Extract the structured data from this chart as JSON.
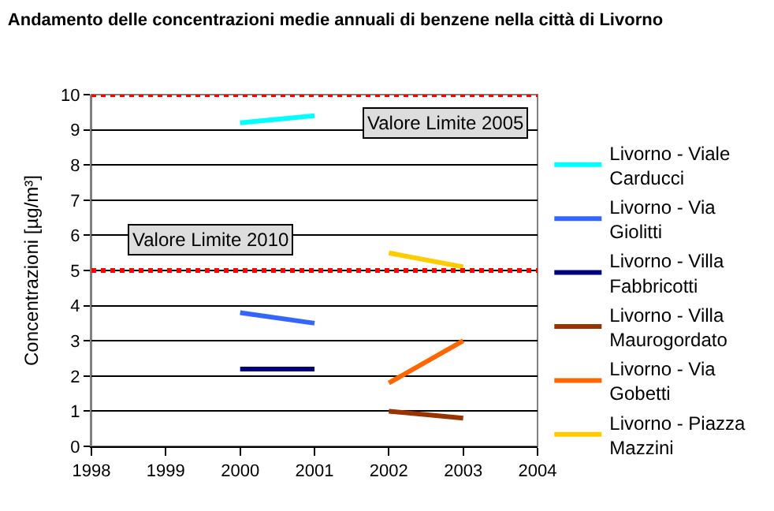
{
  "chart_data": {
    "type": "line",
    "title": "Andamento delle concentrazioni medie annuali di benzene nella città di Livorno",
    "ylabel": "Concentrazioni [µg/m³]",
    "xlim": [
      1998,
      2004
    ],
    "xticks": [
      1998,
      1999,
      2000,
      2001,
      2002,
      2003,
      2004
    ],
    "ylim": [
      0,
      10
    ],
    "yticks": [
      0,
      1,
      2,
      3,
      4,
      5,
      6,
      7,
      8,
      9,
      10
    ],
    "grid": "y",
    "legend": "right",
    "marker": "none",
    "line_style": "solid",
    "series": [
      {
        "name": "Livorno - Viale Carducci",
        "color": "#00ffff",
        "x": [
          2000,
          2001
        ],
        "values": [
          9.2,
          9.4
        ]
      },
      {
        "name": "Livorno - Via Giolitti",
        "color": "#3366ff",
        "x": [
          2000,
          2001
        ],
        "values": [
          3.8,
          3.5
        ]
      },
      {
        "name": "Livorno - Villa Fabbricotti",
        "color": "#000080",
        "x": [
          2000,
          2001
        ],
        "values": [
          2.2,
          2.2
        ]
      },
      {
        "name": "Livorno - Villa Maurogordato",
        "color": "#993300",
        "x": [
          2002,
          2003
        ],
        "values": [
          1.0,
          0.8
        ]
      },
      {
        "name": "Livorno - Via Gobetti",
        "color": "#ff6600",
        "x": [
          2002,
          2003
        ],
        "values": [
          1.8,
          3.0
        ]
      },
      {
        "name": "Livorno - Piazza Mazzini",
        "color": "#ffcc00",
        "x": [
          2002,
          2003
        ],
        "values": [
          5.5,
          5.1
        ]
      }
    ],
    "ref_lines": [
      {
        "axis": "y",
        "value": 10,
        "label": "Valore Limite 2005",
        "color": "#ff0000",
        "line_style": "dotted"
      },
      {
        "axis": "y",
        "value": 5,
        "label": "Valore Limite 2010",
        "color": "#ff0000",
        "line_style": "dotted"
      }
    ]
  }
}
